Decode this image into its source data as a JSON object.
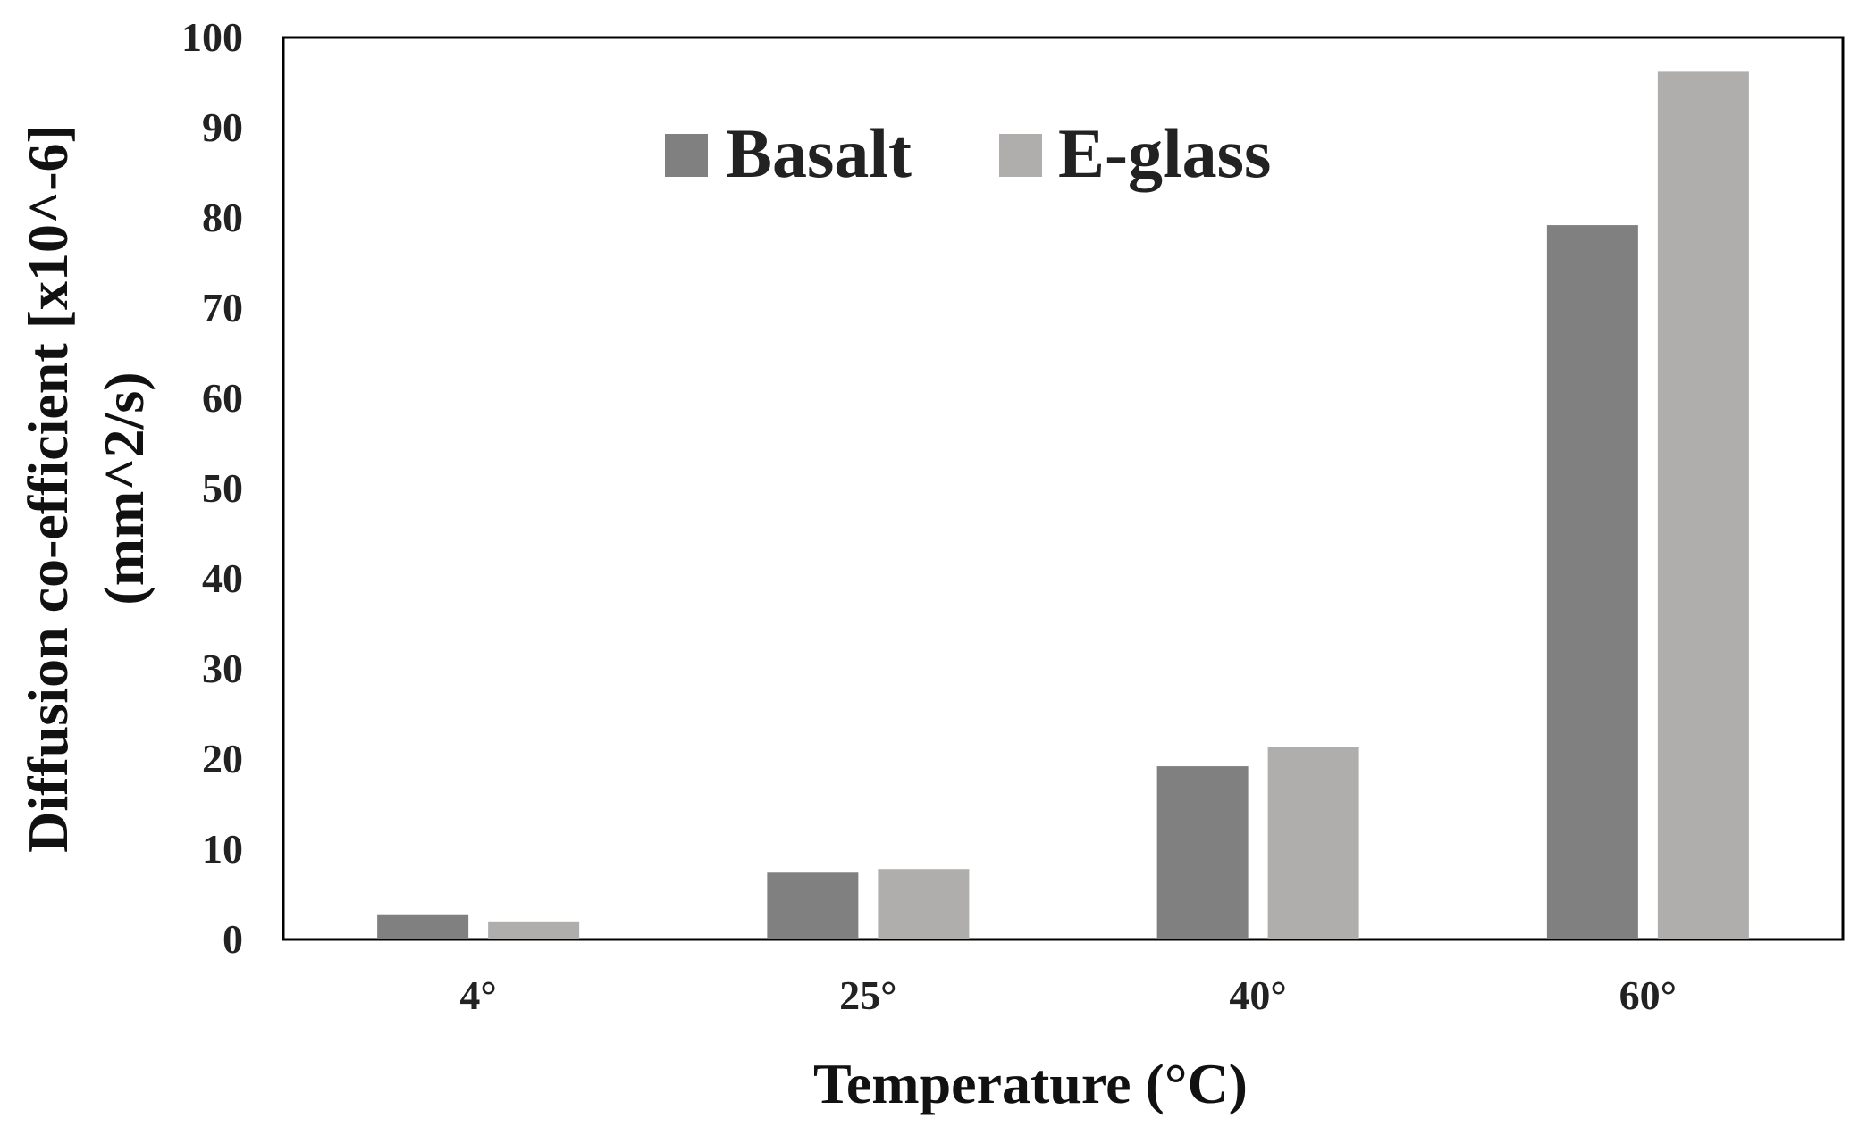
{
  "chart_data": {
    "type": "bar",
    "categories": [
      "4°",
      "25°",
      "40°",
      "60°"
    ],
    "series": [
      {
        "name": "Basalt",
        "values": [
          2.7,
          7.4,
          19.2,
          79.2
        ],
        "color": "#808080"
      },
      {
        "name": "E-glass",
        "values": [
          2.0,
          7.8,
          21.3,
          96.2
        ],
        "color": "#b0adad"
      }
    ],
    "title": "",
    "xlabel": "Temperature (°C)",
    "ylabel": [
      "Diffusion co-efficient [x10^-6]",
      "(mm^2/s)"
    ],
    "ylim": [
      0,
      100
    ],
    "yticks": [
      "0",
      "10",
      "20",
      "30",
      "40",
      "50",
      "60",
      "70",
      "80",
      "90",
      "100"
    ],
    "grid": false,
    "legend_position": "top-center"
  }
}
